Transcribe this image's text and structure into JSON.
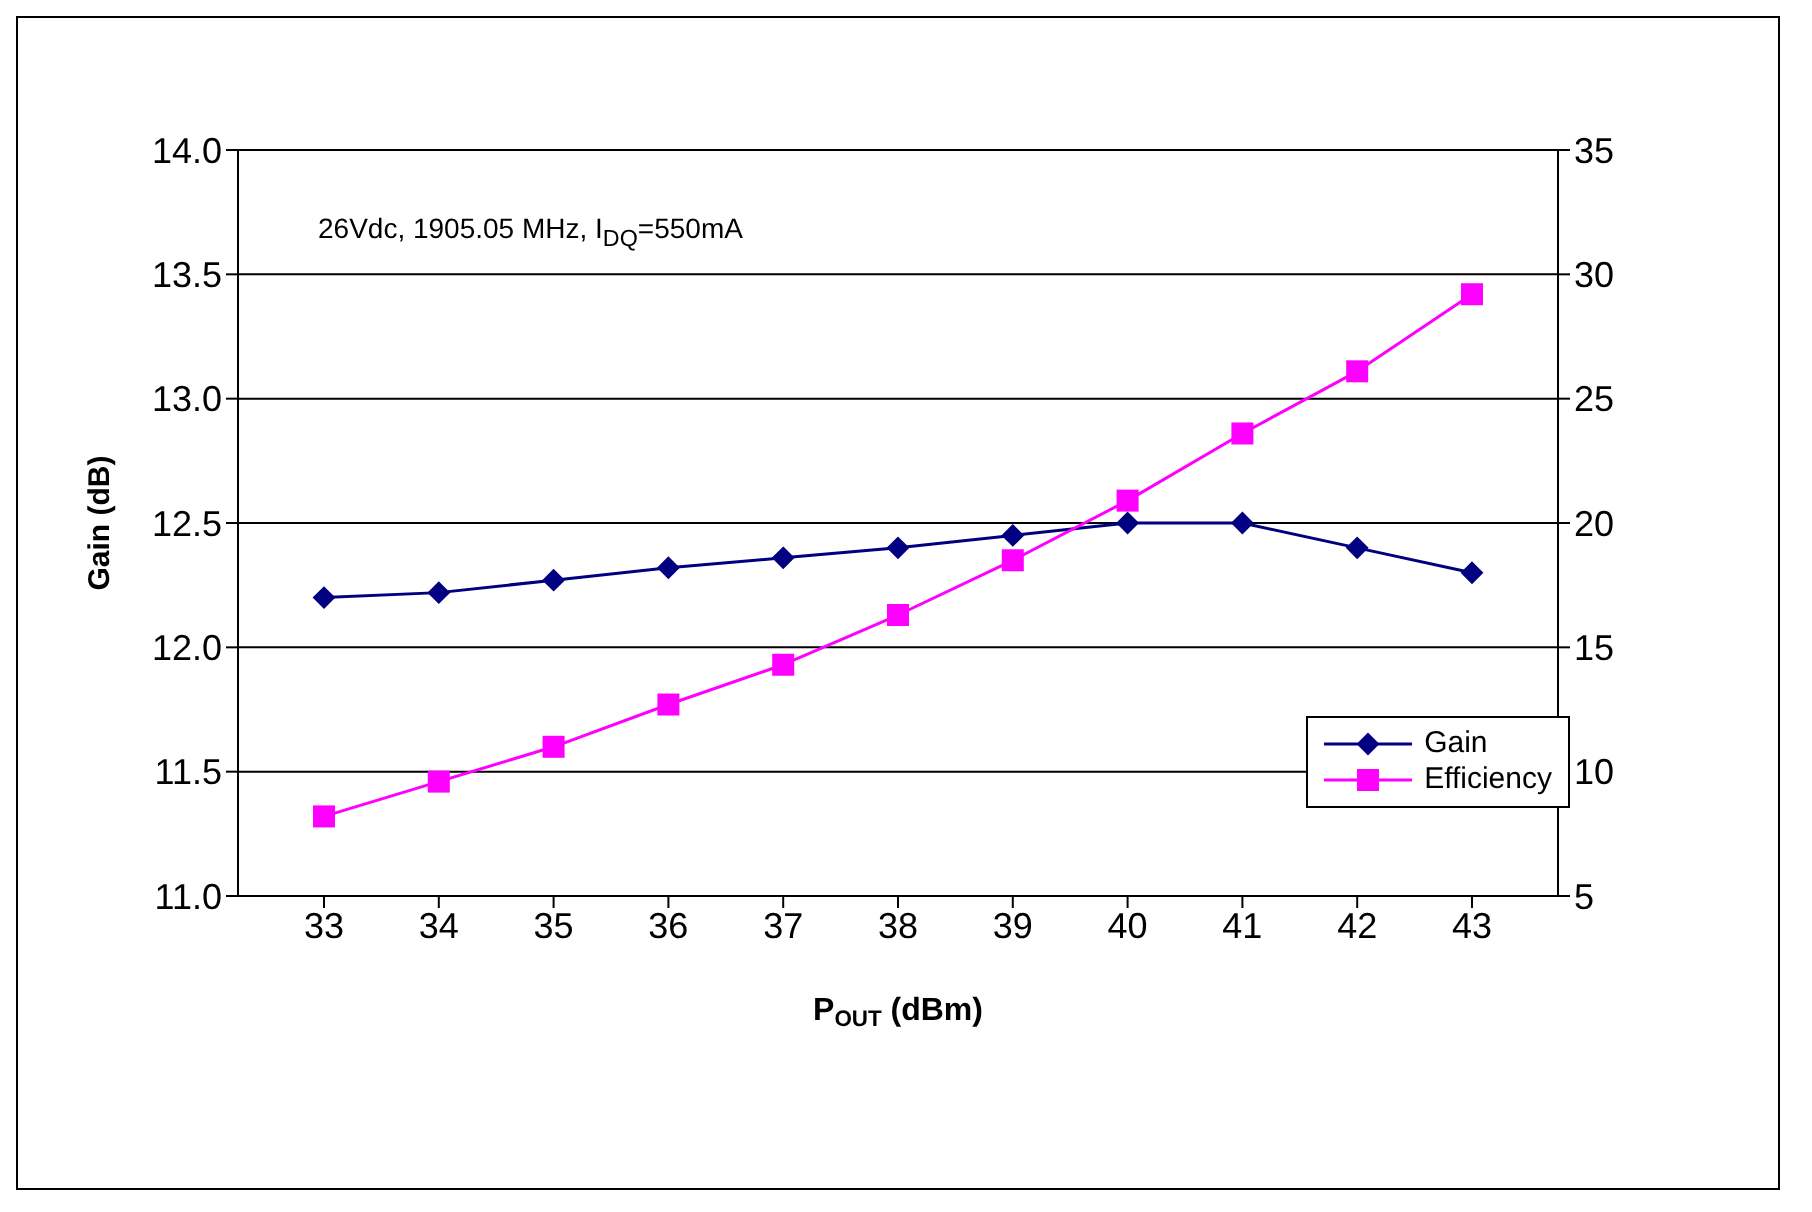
{
  "chart_data": {
    "type": "line",
    "xlabel": "P$_{OUT}$ (dBm)",
    "ylabel": "Gain (dB)",
    "annotations": [
      "26Vdc, 1905.05 MHz, I$_{DQ}$=550mA"
    ],
    "categories": [
      "33",
      "34",
      "35",
      "36",
      "37",
      "38",
      "39",
      "40",
      "41",
      "42",
      "43"
    ],
    "series": [
      {
        "name": "Gain",
        "color": "#000080",
        "marker": "diamond",
        "values": [
          12.2,
          12.22,
          12.27,
          12.32,
          12.36,
          12.4,
          12.45,
          12.5,
          12.5,
          12.4,
          12.3
        ]
      },
      {
        "name": "Efficiency",
        "color": "#ff00ff",
        "marker": "square",
        "axis": "y2",
        "values": [
          8.2,
          9.6,
          11.0,
          12.7,
          14.3,
          16.3,
          18.5,
          20.9,
          23.6,
          26.1,
          29.2
        ]
      }
    ],
    "ylim": [
      11,
      14
    ],
    "yticks": [
      {
        "value": 11,
        "label": "11.0"
      },
      {
        "value": 11.5,
        "label": "11.5"
      },
      {
        "value": 12,
        "label": "12.0"
      },
      {
        "value": 12.5,
        "label": "12.5"
      },
      {
        "value": 13,
        "label": "13.0"
      },
      {
        "value": 13.5,
        "label": "13.5"
      },
      {
        "value": 14,
        "label": "14.0"
      }
    ],
    "y2lim": [
      5,
      35
    ],
    "y2ticks": [
      5,
      10,
      15,
      20,
      25,
      30,
      35
    ],
    "grid": "y",
    "legend": "bottom right"
  }
}
